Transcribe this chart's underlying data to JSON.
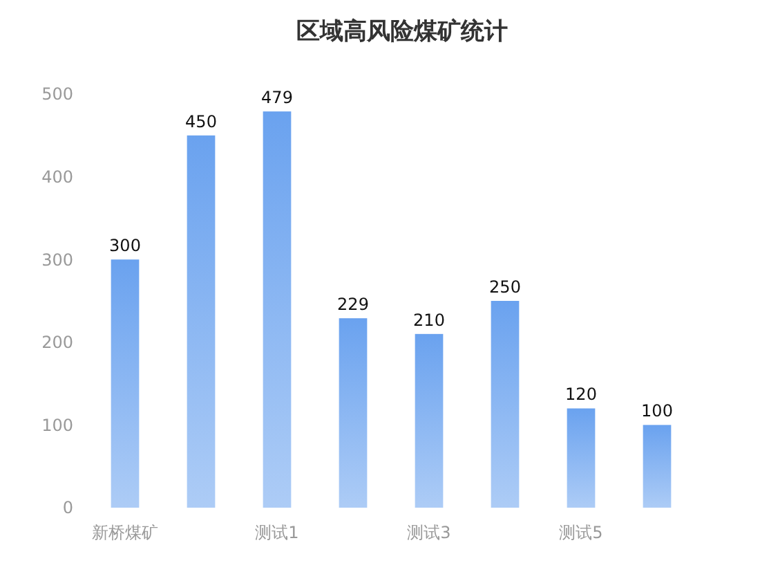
{
  "chart_data": {
    "type": "bar",
    "title": "区域高风险煤矿统计",
    "categories": [
      "新桥煤矿",
      null,
      "测试1",
      null,
      "测试3",
      null,
      "测试5",
      null
    ],
    "values": [
      300,
      450,
      479,
      229,
      210,
      250,
      120,
      100
    ],
    "color": "#6aa2ef",
    "ylim": [
      0,
      500
    ],
    "yticks": [
      0,
      100,
      200,
      300,
      400,
      500
    ],
    "grid": false,
    "data_labels": true
  }
}
